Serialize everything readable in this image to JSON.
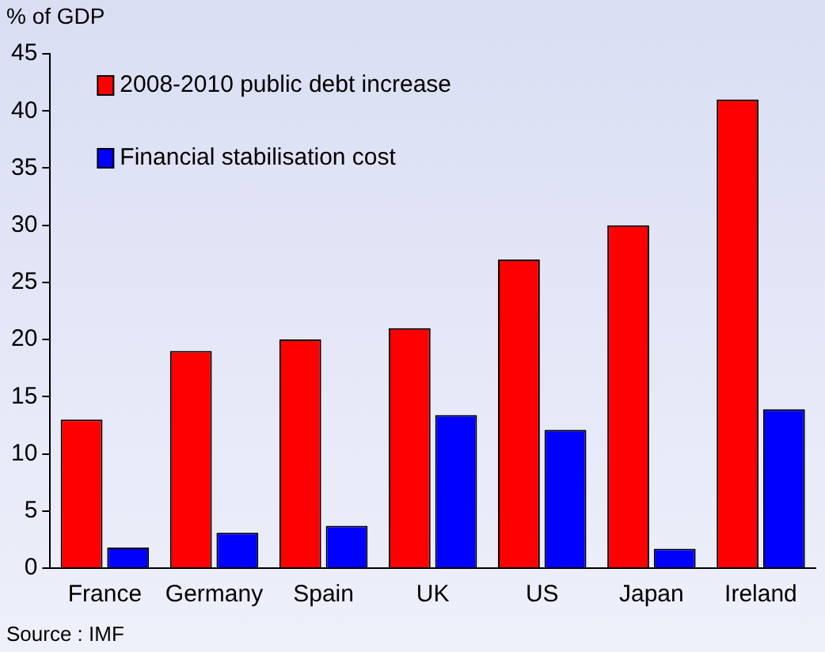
{
  "chart_data": {
    "type": "bar",
    "ylabel": "% of GDP",
    "categories": [
      "France",
      "Germany",
      "Spain",
      "UK",
      "US",
      "Japan",
      "Ireland"
    ],
    "series": [
      {
        "name": "2008-2010 public debt increase",
        "color": "#ff0000",
        "values": [
          13,
          19,
          20,
          21,
          27,
          30,
          41
        ]
      },
      {
        "name": "Financial stabilisation cost",
        "color": "#0000ff",
        "values": [
          1.8,
          3.1,
          3.7,
          13.4,
          12.1,
          1.7,
          13.9
        ]
      }
    ],
    "ylim": [
      0,
      45
    ],
    "yticks": [
      0,
      5,
      10,
      15,
      20,
      25,
      30,
      35,
      40,
      45
    ],
    "grid": false,
    "legend": "top left",
    "annotations": [
      "Source : IMF"
    ]
  }
}
